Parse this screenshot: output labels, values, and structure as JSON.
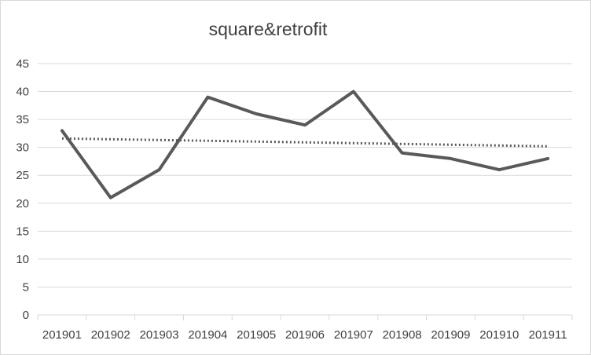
{
  "chart_data": {
    "type": "line",
    "title": "square&retrofit",
    "xlabel": "",
    "ylabel": "",
    "categories": [
      "201901",
      "201902",
      "201903",
      "201904",
      "201905",
      "201906",
      "201907",
      "201908",
      "201909",
      "201910",
      "201911"
    ],
    "series": [
      {
        "values": [
          33,
          21,
          26,
          39,
          36,
          34,
          40,
          29,
          28,
          26,
          28
        ],
        "color": "#595959"
      }
    ],
    "trendline": {
      "type": "linear",
      "style": "dotted",
      "color": "#595959",
      "start": 31.6,
      "end": 30.2
    },
    "ylim": [
      0,
      45
    ],
    "yticks": [
      0,
      5,
      10,
      15,
      20,
      25,
      30,
      35,
      40,
      45
    ],
    "grid": true,
    "legend": "none"
  }
}
